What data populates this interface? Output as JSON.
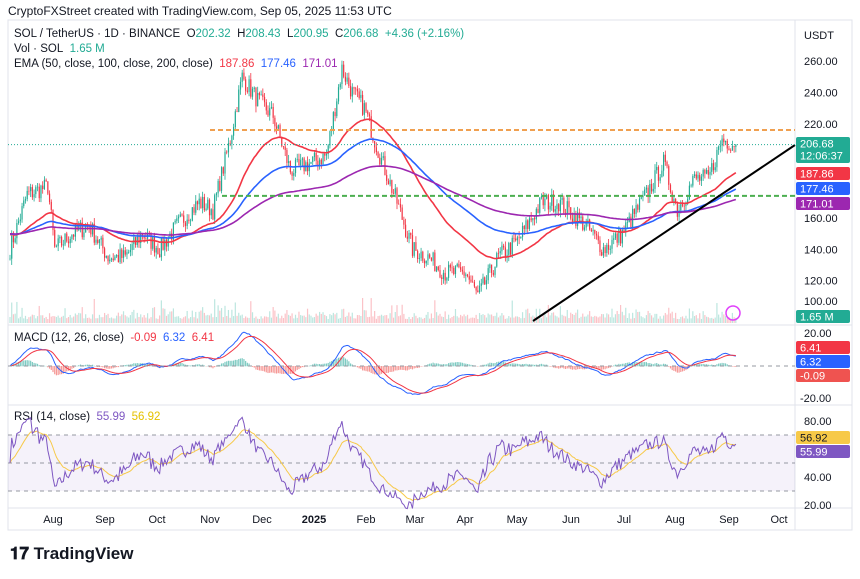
{
  "header": "CryptoFXStreet created with TradingView.com, Sep 05, 2025 11:53 UTC",
  "symbol": {
    "name": "SOL / TetherUS · 1D · BINANCE",
    "o_label": "O",
    "o": "202.32",
    "h_label": "H",
    "h": "208.43",
    "l_label": "L",
    "l": "200.95",
    "c_label": "C",
    "c": "206.68",
    "change": "+4.36 (+2.16%)"
  },
  "volume": {
    "label": "Vol · SOL",
    "value": "1.65 M",
    "tag": "1.65 M"
  },
  "ema": {
    "label": "EMA (50, close, 100, close, 200, close)",
    "v50": "187.86",
    "v100": "177.46",
    "v200": "171.01"
  },
  "macd": {
    "label": "MACD (12, 26, close)",
    "hist": "-0.09",
    "macd": "6.32",
    "signal": "6.41"
  },
  "rsi": {
    "label": "RSI (14, close)",
    "rsi": "55.99",
    "ma": "56.92"
  },
  "price_tag": {
    "price": "206.68",
    "countdown": "12:06:37"
  },
  "currency": "USDT",
  "brand": "TradingView",
  "colors": {
    "up": "#22ab94",
    "down": "#f23645",
    "ema50": "#f23645",
    "ema100": "#2962ff",
    "ema200": "#9c27b0",
    "rsi": "#7e57c2",
    "rsi_ma": "#f7c948"
  },
  "chart_data": {
    "type": "candlestick",
    "price_axis": {
      "ticks": [
        "260.00",
        "240.00",
        "220.00",
        "160.00",
        "140.00",
        "120.00",
        "100.00"
      ],
      "range": [
        100,
        270
      ]
    },
    "macd_axis": {
      "ticks": [
        "20.00",
        "-20.00"
      ]
    },
    "rsi_axis": {
      "ticks": [
        "80.00",
        "40.00",
        "20.00"
      ],
      "bands": [
        30,
        70
      ]
    },
    "time_axis": [
      "Aug",
      "Sep",
      "Oct",
      "Nov",
      "Dec",
      "2025",
      "Feb",
      "Mar",
      "Apr",
      "May",
      "Jun",
      "Jul",
      "Aug",
      "Sep",
      "Oct"
    ],
    "approx_closes": [
      [
        "2024-07-10",
        140
      ],
      [
        "2024-07-20",
        175
      ],
      [
        "2024-08-01",
        180
      ],
      [
        "2024-08-05",
        140
      ],
      [
        "2024-08-15",
        150
      ],
      [
        "2024-08-25",
        155
      ],
      [
        "2024-09-05",
        135
      ],
      [
        "2024-09-15",
        135
      ],
      [
        "2024-09-25",
        150
      ],
      [
        "2024-10-05",
        140
      ],
      [
        "2024-10-15",
        155
      ],
      [
        "2024-10-28",
        170
      ],
      [
        "2024-11-05",
        165
      ],
      [
        "2024-11-15",
        210
      ],
      [
        "2024-11-22",
        250
      ],
      [
        "2024-12-01",
        235
      ],
      [
        "2024-12-10",
        225
      ],
      [
        "2024-12-20",
        190
      ],
      [
        "2025-01-01",
        195
      ],
      [
        "2025-01-10",
        200
      ],
      [
        "2025-01-19",
        255
      ],
      [
        "2025-01-25",
        240
      ],
      [
        "2025-02-01",
        230
      ],
      [
        "2025-02-10",
        200
      ],
      [
        "2025-02-20",
        170
      ],
      [
        "2025-03-01",
        140
      ],
      [
        "2025-03-10",
        135
      ],
      [
        "2025-03-20",
        125
      ],
      [
        "2025-04-01",
        125
      ],
      [
        "2025-04-08",
        110
      ],
      [
        "2025-04-20",
        135
      ],
      [
        "2025-05-01",
        145
      ],
      [
        "2025-05-15",
        170
      ],
      [
        "2025-05-25",
        170
      ],
      [
        "2025-06-10",
        155
      ],
      [
        "2025-06-20",
        140
      ],
      [
        "2025-07-01",
        150
      ],
      [
        "2025-07-15",
        175
      ],
      [
        "2025-07-25",
        195
      ],
      [
        "2025-08-02",
        165
      ],
      [
        "2025-08-12",
        185
      ],
      [
        "2025-08-20",
        185
      ],
      [
        "2025-08-28",
        210
      ],
      [
        "2025-09-05",
        206.68
      ]
    ],
    "levels": {
      "resistance": 216,
      "support": 174
    },
    "grid": false
  }
}
